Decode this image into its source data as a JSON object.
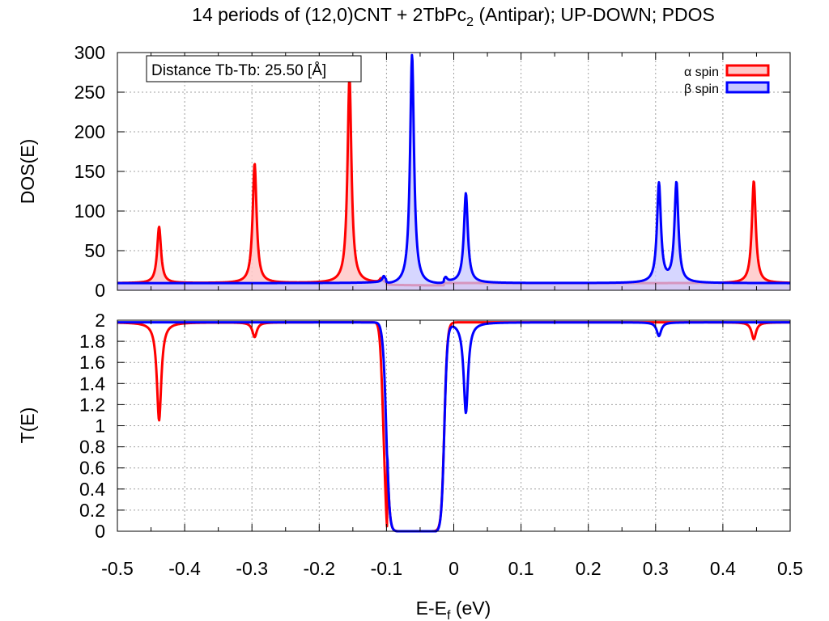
{
  "title": "14 periods of (12,0)CNT + 2TbPc",
  "title_sub": "2",
  "title_rest": " (Antipar); UP-DOWN; PDOS",
  "xlabel": "E-E",
  "xlabel_sub": "f",
  "xlabel_rest": " (eV)",
  "annotation": "Distance Tb-Tb: 25.50 [Å]",
  "legend": [
    {
      "label": "α spin",
      "color": "#ff0000",
      "fill": "#ffc8c8"
    },
    {
      "label": "β spin",
      "color": "#0000ff",
      "fill": "#c8c8ff"
    }
  ],
  "chart_data": [
    {
      "type": "area",
      "name": "PDOS",
      "ylabel": "DOS(E)",
      "xlim": [
        -0.5,
        0.5
      ],
      "ylim": [
        0,
        300
      ],
      "xticks": [
        -0.5,
        -0.4,
        -0.3,
        -0.2,
        -0.1,
        0,
        0.1,
        0.2,
        0.3,
        0.4,
        0.5
      ],
      "yticks": [
        0,
        50,
        100,
        150,
        200,
        250,
        300
      ],
      "grid": true,
      "legend_position": "top-right",
      "series": [
        {
          "name": "α spin",
          "color": "#ff0000",
          "baseline": 9,
          "peaks": [
            {
              "x": -0.438,
              "height": 80
            },
            {
              "x": -0.296,
              "height": 160
            },
            {
              "x": -0.155,
              "height": 270
            },
            {
              "x": -0.108,
              "height": 14
            },
            {
              "x": 0.446,
              "height": 138
            }
          ],
          "dip_region": [
            -0.1,
            -0.015,
            6
          ]
        },
        {
          "name": "β spin",
          "color": "#0000ff",
          "baseline": 9,
          "peaks": [
            {
              "x": -0.104,
              "height": 16
            },
            {
              "x": -0.062,
              "height": 300
            },
            {
              "x": -0.012,
              "height": 14
            },
            {
              "x": 0.018,
              "height": 122
            },
            {
              "x": 0.305,
              "height": 134
            },
            {
              "x": 0.331,
              "height": 135
            }
          ],
          "dip_region": [
            -0.1,
            -0.015,
            6
          ]
        }
      ]
    },
    {
      "type": "line",
      "name": "Transmission",
      "ylabel": "T(E)",
      "xlim": [
        -0.5,
        0.5
      ],
      "ylim": [
        0,
        2
      ],
      "xticks": [
        -0.5,
        -0.4,
        -0.3,
        -0.2,
        -0.1,
        0,
        0.1,
        0.2,
        0.3,
        0.4,
        0.5
      ],
      "yticks": [
        0,
        0.2,
        0.4,
        0.6,
        0.8,
        1,
        1.2,
        1.4,
        1.6,
        1.8,
        2
      ],
      "grid": true,
      "gap": [
        -0.1,
        -0.014
      ],
      "series": [
        {
          "name": "α spin",
          "color": "#ff0000",
          "dips": [
            {
              "x": -0.438,
              "min": 1.05
            },
            {
              "x": -0.296,
              "min": 1.84
            },
            {
              "x": 0.446,
              "min": 1.82
            }
          ]
        },
        {
          "name": "β spin",
          "color": "#0000ff",
          "dips": [
            {
              "x": 0.018,
              "min": 1.12
            },
            {
              "x": 0.305,
              "min": 1.85
            }
          ]
        }
      ]
    }
  ]
}
